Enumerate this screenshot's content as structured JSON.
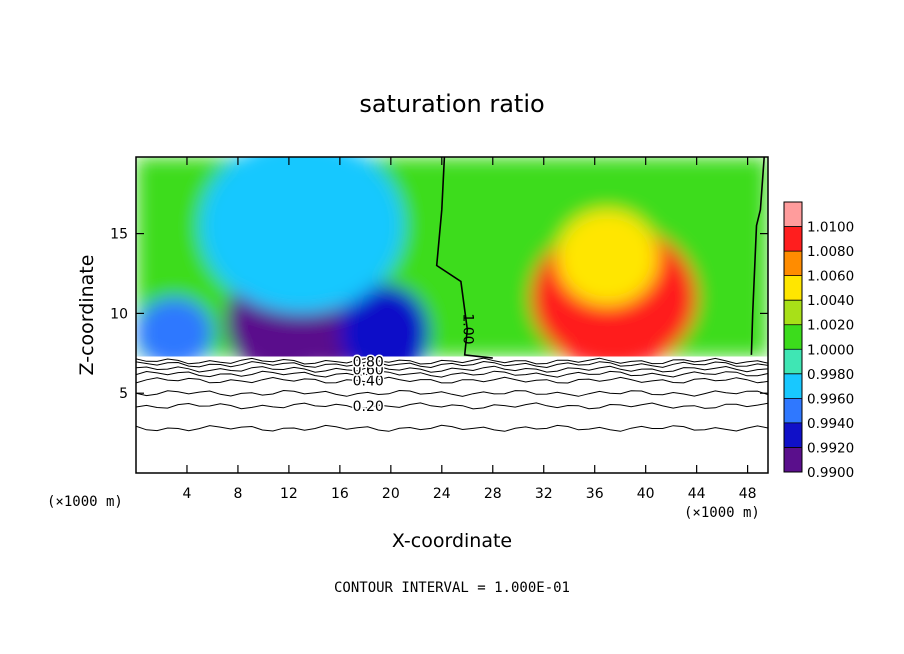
{
  "chart_data": {
    "type": "heatmap",
    "title": "saturation ratio",
    "xlabel": "X-coordinate",
    "ylabel": "Z-coordinate",
    "x_unit_left": "(×1000 m)",
    "x_unit_right": "(×1000 m)",
    "footer": "CONTOUR INTERVAL = 1.000E-01",
    "xlim": [
      0,
      49.6
    ],
    "ylim": [
      0,
      19.8
    ],
    "x_ticks": [
      4,
      8,
      12,
      16,
      20,
      24,
      28,
      32,
      36,
      40,
      44,
      48
    ],
    "y_ticks": [
      5,
      10,
      15
    ],
    "colorbar": {
      "levels": [
        0.99,
        0.992,
        0.994,
        0.996,
        0.998,
        1.0,
        1.002,
        1.004,
        1.006,
        1.008,
        1.01
      ],
      "labels": [
        "0.9900",
        "0.9920",
        "0.9940",
        "0.9960",
        "0.9980",
        "1.0000",
        "1.0020",
        "1.0040",
        "1.0060",
        "1.0080",
        "1.0100"
      ],
      "colors": [
        "#5a0f8c",
        "#1010c8",
        "#2f78ff",
        "#18c8ff",
        "#3fe6b4",
        "#3cdc1c",
        "#a8e018",
        "#ffe600",
        "#ff8c00",
        "#ff1e1e",
        "#ff9c9c"
      ]
    },
    "field_blobs": [
      {
        "x": 11.5,
        "z": 9.5,
        "rx": 4.5,
        "rz": 3.5,
        "value": 0.9915
      },
      {
        "x": 15.5,
        "z": 9.0,
        "rx": 2.8,
        "rz": 2.6,
        "value": 0.9918
      },
      {
        "x": 19.5,
        "z": 8.8,
        "rx": 3.5,
        "rz": 3.0,
        "value": 0.9935
      },
      {
        "x": 3.0,
        "z": 8.8,
        "rx": 3.0,
        "rz": 2.2,
        "value": 0.9948
      },
      {
        "x": 13.0,
        "z": 15.5,
        "rx": 8.0,
        "rz": 5.5,
        "value": 0.9968
      },
      {
        "x": 37.5,
        "z": 11.0,
        "rx": 6.5,
        "rz": 4.5,
        "value": 1.0085
      },
      {
        "x": 37.0,
        "z": 13.5,
        "rx": 4.0,
        "rz": 3.0,
        "value": 1.0055
      }
    ],
    "background_value": 1.0002,
    "lower_contours": [
      {
        "label": "0.20",
        "z": 4.2
      },
      {
        "label": "0.40",
        "z": 5.8
      },
      {
        "label": "0.60",
        "z": 6.5
      },
      {
        "label": "0.80",
        "z": 7.0
      }
    ],
    "extra_contour_levels_z": [
      2.8,
      5.0,
      6.2,
      6.8
    ],
    "unity_contour_label": "1.00",
    "unity_contour": [
      [
        24.2,
        19.8
      ],
      [
        24.0,
        16.5
      ],
      [
        23.6,
        13.0
      ],
      [
        25.5,
        12.0
      ],
      [
        26.0,
        9.0
      ],
      [
        25.8,
        7.4
      ],
      [
        28.0,
        7.2
      ]
    ],
    "unity_contour_right": [
      [
        49.3,
        19.8
      ],
      [
        49.0,
        16.5
      ],
      [
        48.7,
        15.5
      ],
      [
        48.4,
        10.0
      ],
      [
        48.3,
        7.4
      ]
    ]
  }
}
